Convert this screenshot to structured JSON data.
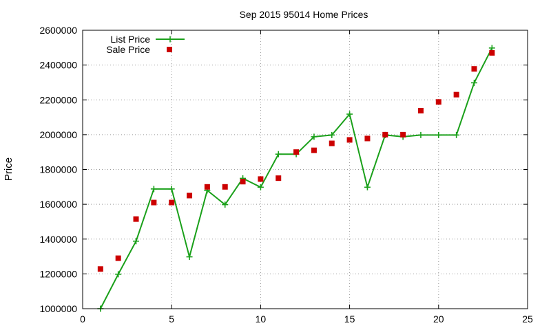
{
  "chart_data": {
    "type": "line",
    "title": "Sep 2015 95014 Home Prices",
    "xlabel": "",
    "ylabel": "Price",
    "xlim": [
      0,
      25
    ],
    "ylim": [
      1000000,
      2600000
    ],
    "xticks": [
      0,
      5,
      10,
      15,
      20,
      25
    ],
    "yticks": [
      1000000,
      1200000,
      1400000,
      1600000,
      1800000,
      2000000,
      2200000,
      2400000,
      2600000
    ],
    "grid": true,
    "legend_position": "top-left",
    "series": [
      {
        "name": "List Price",
        "style": "line-with-plus-markers",
        "color": "#1aa01a",
        "x": [
          1,
          2,
          3,
          4,
          5,
          6,
          7,
          8,
          9,
          10,
          11,
          12,
          13,
          14,
          15,
          16,
          17,
          18,
          19,
          20,
          21,
          22,
          23
        ],
        "y": [
          1000000,
          1198000,
          1388000,
          1688000,
          1688000,
          1298000,
          1680000,
          1598000,
          1749000,
          1698000,
          1888000,
          1888000,
          1988000,
          1998000,
          2118000,
          1698000,
          1998000,
          1988000,
          1998000,
          1998000,
          1998000,
          2298000,
          2498000
        ]
      },
      {
        "name": "Sale Price",
        "style": "square-markers",
        "color": "#cc0000",
        "x": [
          1,
          2,
          3,
          4,
          5,
          6,
          7,
          8,
          9,
          10,
          11,
          12,
          13,
          14,
          15,
          16,
          17,
          18,
          19,
          20,
          21,
          22,
          23
        ],
        "y": [
          1228000,
          1290000,
          1515000,
          1610000,
          1610000,
          1650000,
          1700000,
          1700000,
          1730000,
          1745000,
          1750000,
          1900000,
          1910000,
          1950000,
          1970000,
          1978000,
          2000000,
          2000000,
          2138000,
          2188000,
          2230000,
          2378000,
          2470000
        ]
      }
    ]
  }
}
